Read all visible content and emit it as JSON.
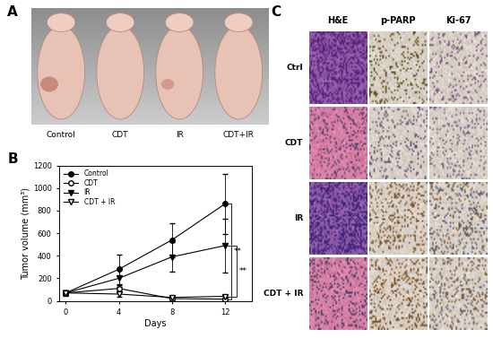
{
  "panel_a": {
    "letter": "A",
    "labels": [
      "Control",
      "CDT",
      "IR",
      "CDT+IR"
    ]
  },
  "panel_b": {
    "letter": "B"
  },
  "chart_data": {
    "type": "line",
    "x_label": "Days",
    "y_label": "Tumor volume (mm³)",
    "x": [
      0,
      4,
      8,
      12
    ],
    "series": [
      {
        "name": "Control",
        "color": "#000000",
        "marker": "filled_circle",
        "values": [
          70,
          280,
          540,
          860
        ],
        "errors": [
          20,
          130,
          150,
          270
        ]
      },
      {
        "name": "CDT",
        "color": "#000000",
        "marker": "open_circle",
        "values": [
          70,
          110,
          20,
          15
        ],
        "errors": [
          20,
          30,
          15,
          10
        ]
      },
      {
        "name": "IR",
        "color": "#000000",
        "marker": "filled_triangle",
        "values": [
          70,
          200,
          390,
          490
        ],
        "errors": [
          25,
          80,
          130,
          240
        ]
      },
      {
        "name": "CDT + IR",
        "color": "#000000",
        "marker": "open_triangle",
        "values": [
          70,
          60,
          30,
          40
        ],
        "errors": [
          20,
          20,
          15,
          15
        ]
      }
    ],
    "xlim": [
      -0.5,
      14
    ],
    "xticks": [
      0,
      4,
      8,
      12
    ],
    "ylim": [
      0,
      1200
    ],
    "yticks": [
      0,
      200,
      400,
      600,
      800,
      1000,
      1200
    ],
    "legend": "upper left",
    "annotations": [
      {
        "text": "**",
        "from": "Control",
        "to": "CDT"
      },
      {
        "text": "**",
        "from": "IR",
        "to": "CDT + IR"
      }
    ]
  },
  "panel_c": {
    "letter": "C",
    "columns": [
      "H&E",
      "p-PARP",
      "Ki-67"
    ],
    "rows": [
      "Ctrl",
      "CDT",
      "IR",
      "CDT + IR"
    ]
  }
}
